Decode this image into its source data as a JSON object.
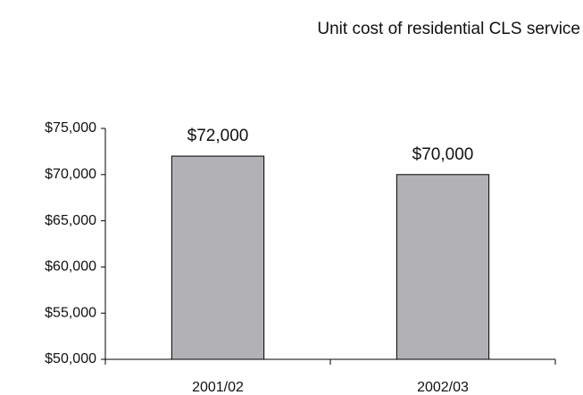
{
  "chart_data": {
    "type": "bar",
    "title": "Unit cost of residential CLS service",
    "categories": [
      "2001/02",
      "2002/03"
    ],
    "values": [
      72000,
      70000
    ],
    "value_labels": [
      "$72,000",
      "$70,000"
    ],
    "color": "#b2b2b6",
    "ylim": [
      50000,
      75000
    ],
    "yticks": [
      {
        "value": 50000,
        "label": "$50,000"
      },
      {
        "value": 55000,
        "label": "$55,000"
      },
      {
        "value": 60000,
        "label": "$60,000"
      },
      {
        "value": 65000,
        "label": "$65,000"
      },
      {
        "value": 70000,
        "label": "$70,000"
      },
      {
        "value": 75000,
        "label": "$75,000"
      }
    ],
    "grid": false
  }
}
